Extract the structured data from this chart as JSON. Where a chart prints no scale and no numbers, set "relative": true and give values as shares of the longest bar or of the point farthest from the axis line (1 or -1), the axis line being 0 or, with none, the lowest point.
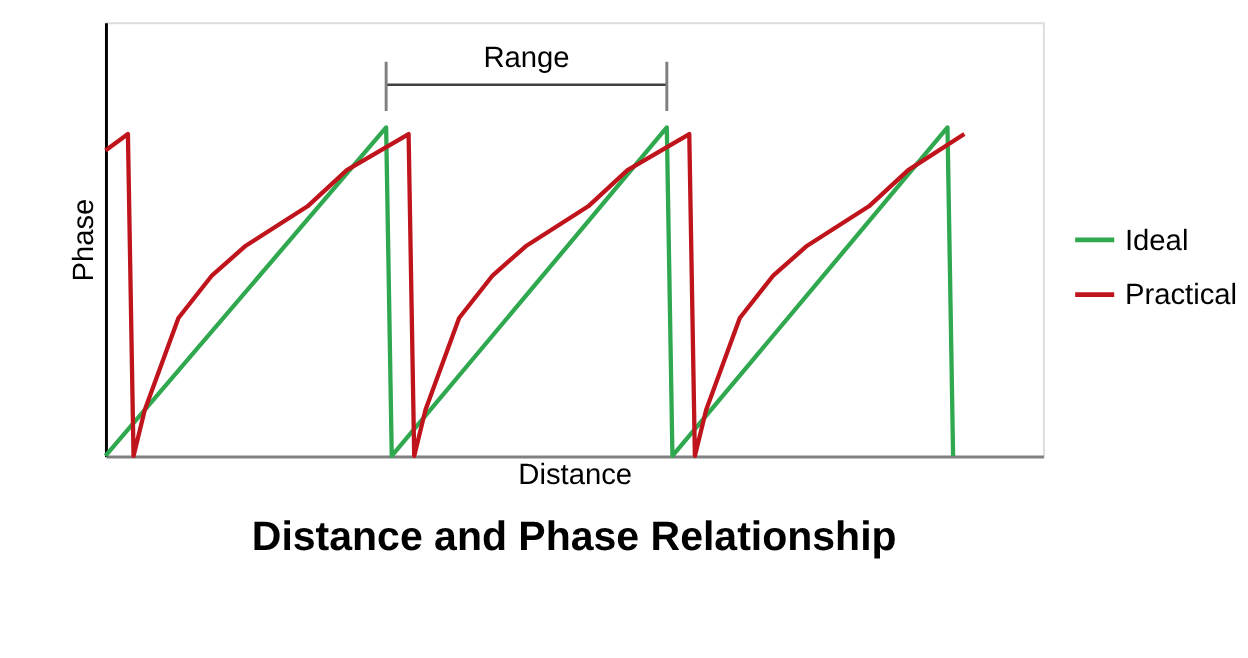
{
  "chart_data": {
    "type": "line",
    "title": "Distance and Phase Relationship",
    "xlabel": "Distance",
    "ylabel": "Phase",
    "relative": true,
    "legend": "right",
    "marker": "none",
    "line_style": "solid",
    "annotations": [
      "Range"
    ],
    "categories": [
      null,
      null,
      null,
      null,
      null,
      null,
      null,
      null,
      null,
      null,
      null,
      null,
      null,
      null,
      null,
      null,
      null,
      null,
      null,
      null,
      null,
      null,
      null,
      null,
      null,
      null,
      null,
      null,
      null,
      null,
      null,
      null,
      null,
      null,
      null,
      null,
      null,
      null,
      null,
      null,
      null,
      null,
      null,
      null,
      null,
      null,
      null,
      null,
      null,
      null,
      null,
      null,
      null,
      null,
      null,
      null,
      null,
      null,
      null,
      null,
      null,
      null,
      null,
      null,
      null,
      null,
      null,
      null,
      null,
      null,
      null,
      null,
      null,
      null,
      null,
      null,
      null,
      null,
      null,
      null,
      null,
      null,
      null,
      null,
      null,
      null,
      null,
      null,
      null,
      null,
      null,
      null,
      null,
      null,
      null,
      null,
      null,
      null,
      null,
      null,
      null,
      null,
      null,
      null,
      null,
      null,
      null,
      null,
      null,
      null,
      null,
      null,
      null,
      null,
      null,
      null,
      null,
      null,
      null,
      null,
      null,
      null,
      null,
      null,
      null,
      null,
      null,
      null,
      null,
      null,
      null,
      null,
      null,
      null,
      null,
      null,
      null,
      null,
      null,
      null,
      null,
      null,
      null,
      null,
      null,
      null,
      null,
      null,
      null,
      null,
      null,
      null,
      null,
      null,
      null,
      null,
      null,
      null,
      null,
      null,
      null,
      null,
      null,
      null,
      null,
      null,
      null,
      null
    ],
    "series": [
      {
        "name": "Ideal",
        "color": "#2fa84f",
        "values": [
          0,
          null,
          null,
          null,
          null,
          null,
          null,
          null,
          null,
          null,
          null,
          null,
          null,
          null,
          null,
          null,
          null,
          null,
          null,
          null,
          null,
          null,
          null,
          null,
          null,
          null,
          null,
          null,
          null,
          null,
          null,
          null,
          null,
          null,
          null,
          null,
          null,
          null,
          null,
          null,
          null,
          null,
          null,
          null,
          null,
          null,
          null,
          null,
          null,
          null,
          1,
          0,
          null,
          null,
          null,
          null,
          null,
          null,
          null,
          null,
          null,
          null,
          null,
          null,
          null,
          null,
          null,
          null,
          null,
          null,
          null,
          null,
          null,
          null,
          null,
          null,
          null,
          null,
          null,
          null,
          null,
          null,
          null,
          null,
          null,
          null,
          null,
          null,
          null,
          null,
          null,
          null,
          null,
          null,
          null,
          null,
          null,
          null,
          null,
          null,
          1,
          0,
          null,
          null,
          null,
          null,
          null,
          null,
          null,
          null,
          null,
          null,
          null,
          null,
          null,
          null,
          null,
          null,
          null,
          null,
          null,
          null,
          null,
          null,
          null,
          null,
          null,
          null,
          null,
          null,
          null,
          null,
          null,
          null,
          null,
          null,
          null,
          null,
          null,
          null,
          null,
          null,
          null,
          null,
          null,
          null,
          null,
          null,
          null,
          null,
          1,
          0,
          null,
          null,
          null,
          null,
          null,
          null,
          null,
          null,
          null,
          null,
          null,
          null,
          null,
          null,
          null,
          null
        ]
      },
      {
        "name": "Practical",
        "color": "#c0141c",
        "values": [
          0.93,
          null,
          null,
          null,
          0.98,
          0,
          null,
          0.14,
          null,
          null,
          null,
          null,
          null,
          0.42,
          null,
          null,
          null,
          null,
          null,
          0.55,
          null,
          null,
          null,
          null,
          null,
          0.64,
          null,
          null,
          null,
          null,
          null,
          null,
          null,
          null,
          null,
          null,
          0.76,
          null,
          null,
          null,
          null,
          null,
          null,
          0.87,
          null,
          null,
          null,
          null,
          null,
          null,
          null,
          null,
          null,
          null,
          0.98,
          0,
          null,
          0.14,
          null,
          null,
          null,
          null,
          null,
          0.42,
          null,
          null,
          null,
          null,
          null,
          0.55,
          null,
          null,
          null,
          null,
          null,
          0.64,
          null,
          null,
          null,
          null,
          null,
          null,
          null,
          null,
          null,
          null,
          0.76,
          null,
          null,
          null,
          null,
          null,
          null,
          0.87,
          null,
          null,
          null,
          null,
          null,
          null,
          null,
          null,
          null,
          null,
          0.98,
          0,
          null,
          0.14,
          null,
          null,
          null,
          null,
          null,
          0.42,
          null,
          null,
          null,
          null,
          null,
          0.55,
          null,
          null,
          null,
          null,
          null,
          0.64,
          null,
          null,
          null,
          null,
          null,
          null,
          null,
          null,
          null,
          null,
          0.76,
          null,
          null,
          null,
          null,
          null,
          null,
          0.87,
          null,
          null,
          null,
          null,
          null,
          null,
          null,
          null,
          null,
          0.98,
          null,
          null,
          null,
          null,
          null,
          null,
          null,
          null,
          null,
          null,
          null,
          null,
          null,
          null
        ]
      }
    ]
  }
}
